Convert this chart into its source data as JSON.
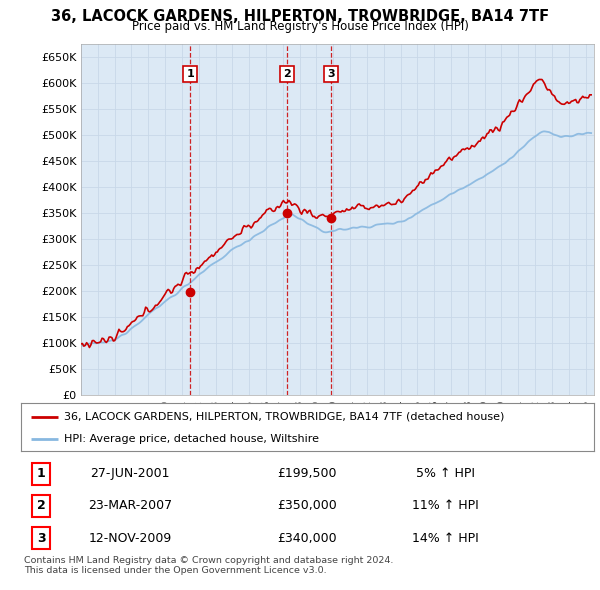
{
  "title": "36, LACOCK GARDENS, HILPERTON, TROWBRIDGE, BA14 7TF",
  "subtitle": "Price paid vs. HM Land Registry's House Price Index (HPI)",
  "background_color": "#ffffff",
  "grid_color": "#c8d8e8",
  "plot_bg": "#dce9f5",
  "red_line_color": "#cc0000",
  "blue_line_color": "#88b8e0",
  "sale_marker_color": "#cc0000",
  "ylim": [
    0,
    675000
  ],
  "yticks": [
    0,
    50000,
    100000,
    150000,
    200000,
    250000,
    300000,
    350000,
    400000,
    450000,
    500000,
    550000,
    600000,
    650000
  ],
  "ytick_labels": [
    "£0",
    "£50K",
    "£100K",
    "£150K",
    "£200K",
    "£250K",
    "£300K",
    "£350K",
    "£400K",
    "£450K",
    "£500K",
    "£550K",
    "£600K",
    "£650K"
  ],
  "sales": [
    {
      "date_num": 2001.49,
      "price": 199500,
      "label": "1"
    },
    {
      "date_num": 2007.22,
      "price": 350000,
      "label": "2"
    },
    {
      "date_num": 2009.87,
      "price": 340000,
      "label": "3"
    }
  ],
  "sale_lines": [
    2001.49,
    2007.22,
    2009.87
  ],
  "legend_entries": [
    "36, LACOCK GARDENS, HILPERTON, TROWBRIDGE, BA14 7TF (detached house)",
    "HPI: Average price, detached house, Wiltshire"
  ],
  "table_rows": [
    {
      "num": "1",
      "date": "27-JUN-2001",
      "price": "£199,500",
      "hpi": "5% ↑ HPI"
    },
    {
      "num": "2",
      "date": "23-MAR-2007",
      "price": "£350,000",
      "hpi": "11% ↑ HPI"
    },
    {
      "num": "3",
      "date": "12-NOV-2009",
      "price": "£340,000",
      "hpi": "14% ↑ HPI"
    }
  ],
  "footer": "Contains HM Land Registry data © Crown copyright and database right 2024.\nThis data is licensed under the Open Government Licence v3.0.",
  "xmin": 1995.0,
  "xmax": 2025.5
}
